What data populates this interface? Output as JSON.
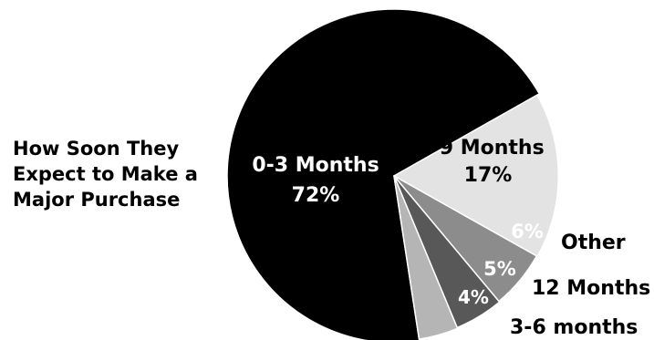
{
  "chart_data": {
    "type": "pie",
    "title_lines": [
      "How Soon They",
      "Expect to Make a",
      "Major Purchase"
    ],
    "slices": [
      {
        "name": "0-3 Months",
        "value": 72,
        "value_label": "72%",
        "color": "#000000",
        "label_color": "#ffffff"
      },
      {
        "name": "6-9 Months",
        "value": 17,
        "value_label": "17%",
        "color": "#e3e3e3",
        "label_color": "#000000"
      },
      {
        "name": "Other",
        "value": 6,
        "value_label": "6%",
        "color": "#8c8c8c",
        "label_color": "#ffffff"
      },
      {
        "name": "12 Months",
        "value": 5,
        "value_label": "5%",
        "color": "#585858",
        "label_color": "#ffffff"
      },
      {
        "name": "3-6 months",
        "value": 4,
        "value_label": "4%",
        "color": "#b5b5b5",
        "label_color": "#ffffff"
      }
    ],
    "slice_border_color": "#ffffff"
  }
}
